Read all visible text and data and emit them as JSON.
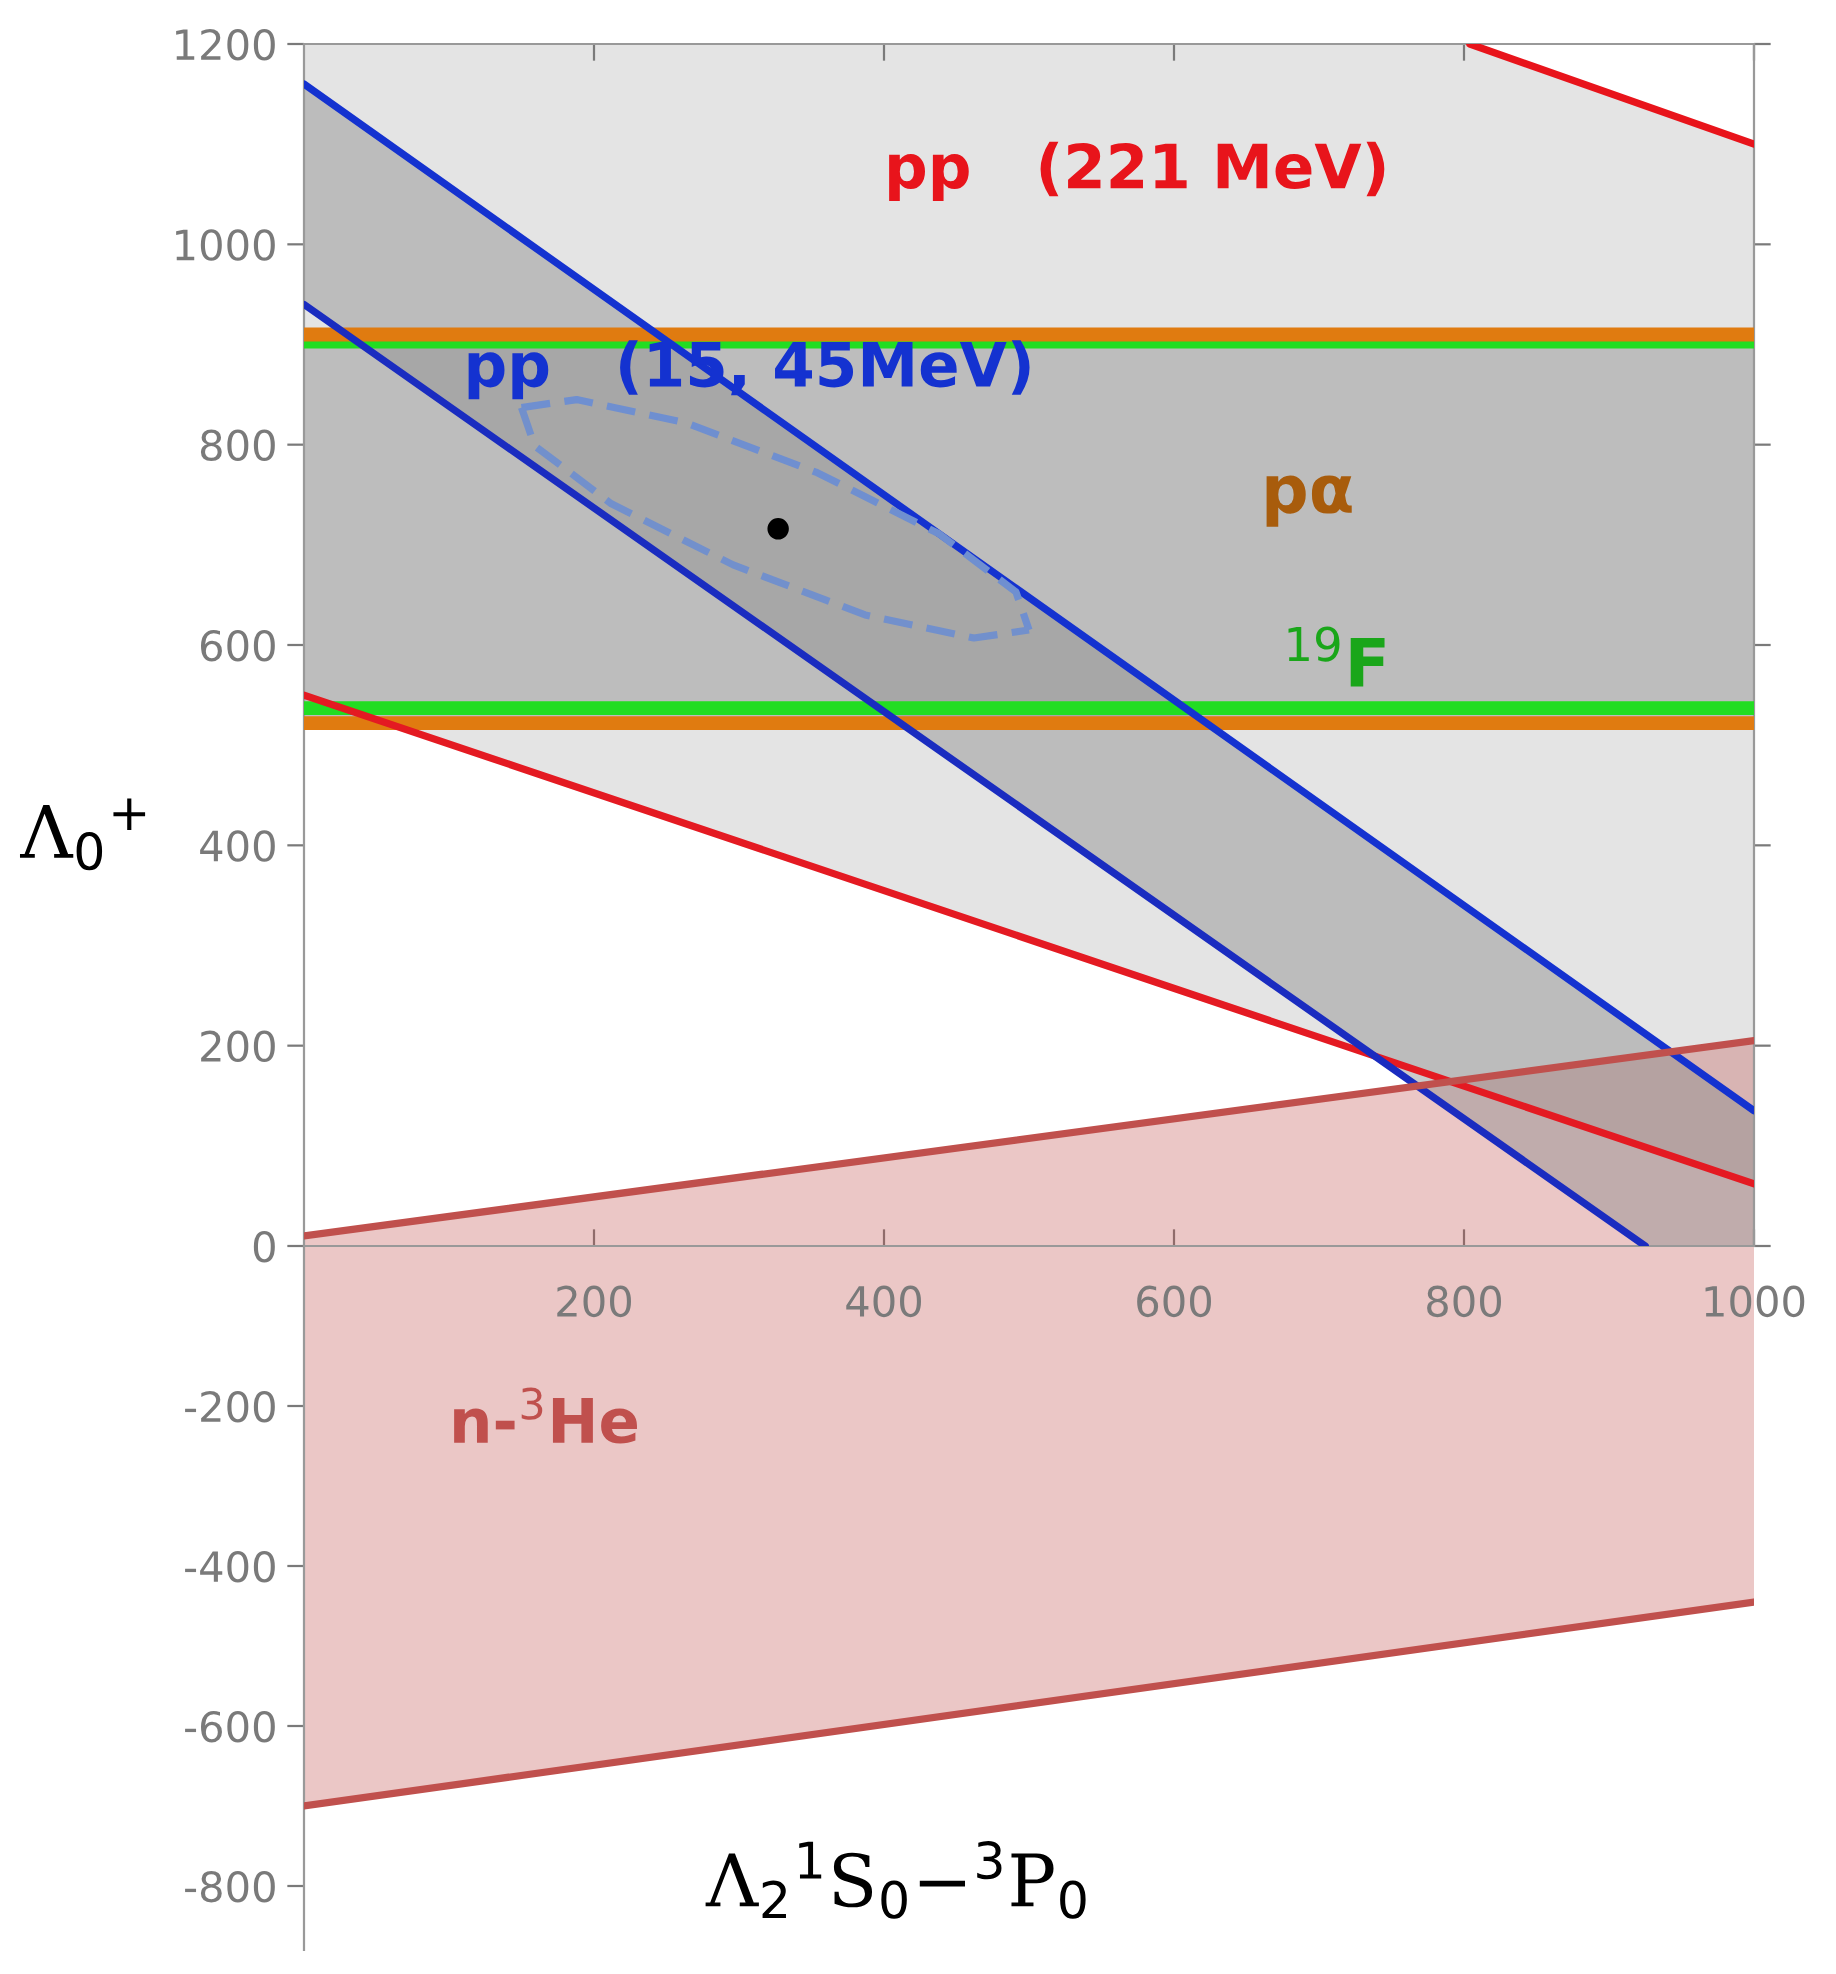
{
  "chart_data": [
    {
      "type": "line",
      "ylabel": "Λ$_{0}$$^{+}$",
      "xlim": [
        0,
        1000
      ],
      "ylim": [
        0,
        1200
      ],
      "xticks": [
        200,
        400,
        600,
        800,
        1000
      ],
      "yticks": [
        0,
        200,
        400,
        600,
        800,
        1000,
        1200
      ],
      "bands": [
        {
          "axis": "y",
          "from": 522,
          "to": 910,
          "color": "#bdbdbd"
        }
      ],
      "ref_lines": [
        {
          "axis": "y",
          "value": 910,
          "color": "#e07b10",
          "label": "pα"
        },
        {
          "axis": "y",
          "value": 522,
          "color": "#e07b10"
        },
        {
          "axis": "y",
          "value": 903,
          "color": "#22dd22"
        },
        {
          "axis": "y",
          "value": 537,
          "color": "#22dd22",
          "label": "$^{19}$F"
        }
      ],
      "series": [
        {
          "name": "pp   (221 MeV)",
          "color": "#e8141b",
          "x": [
            804,
            1000
          ],
          "values": [
            1200,
            1100
          ]
        },
        {
          "color": "#e41a22",
          "x": [
            0,
            1000
          ],
          "values": [
            550,
            62
          ]
        },
        {
          "name": "pp   (15, 45MeV)",
          "color": "#1432d0",
          "x": [
            0,
            1000
          ],
          "values": [
            1160,
            135
          ]
        },
        {
          "color": "#1a2cc0",
          "x": [
            0,
            925
          ],
          "values": [
            940,
            0
          ]
        },
        {
          "type": "area",
          "color": "#c0504d",
          "x": [
            0,
            1000
          ],
          "values": [
            10,
            205
          ]
        },
        {
          "color": "#6f8fd0",
          "line_style": "dashed",
          "x": [
            150,
            188,
            263,
            354,
            438,
            491,
            500
          ],
          "values": [
            837,
            845,
            822,
            772,
            711,
            653,
            615
          ]
        },
        {
          "color": "#7290cc",
          "line_style": "dashed",
          "x": [
            150,
            159,
            212,
            296,
            387,
            462,
            500
          ],
          "values": [
            837,
            799,
            741,
            680,
            630,
            607,
            615
          ]
        },
        {
          "type": "scatter",
          "marker": "circle",
          "color": "#000000",
          "x": [
            327
          ],
          "values": [
            716
          ]
        },
        {
          "color": "#e4e4e4",
          "x": [
            0,
            804,
            1000
          ],
          "values": [
            null,
            null,
            null
          ],
          "lower": [
            550,
            158,
            62
          ],
          "upper": [
            1200,
            1200,
            1100
          ]
        },
        {
          "color": "#8c8c8c",
          "x": [
            0,
            925,
            1000
          ],
          "values": [
            null,
            null,
            null
          ],
          "lower": [
            940,
            0,
            0
          ],
          "upper": [
            1160,
            212,
            135
          ]
        }
      ]
    },
    {
      "type": "line",
      "xlabel": "Λ$_{2}$$^{1}$S$_{0}$−$^{3}$P$_{0}$",
      "xlim": [
        0,
        1000
      ],
      "ylim": [
        -880,
        0
      ],
      "yticks": [
        -800,
        -600,
        -400,
        -200
      ],
      "tick_labels": "y",
      "series": [
        {
          "name": "n-$^{3}$He",
          "color": "#c0504d",
          "x": [
            0,
            1000
          ],
          "values": [
            -700,
            -445
          ]
        }
      ]
    }
  ]
}
